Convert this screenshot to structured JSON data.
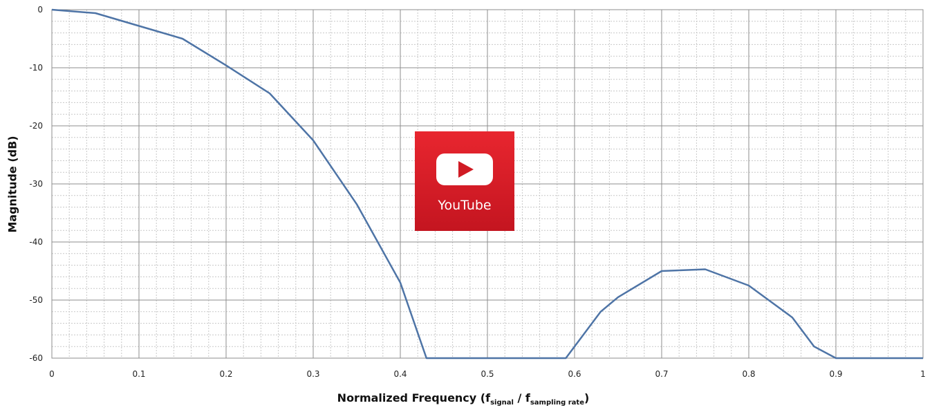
{
  "chart_data": {
    "type": "line",
    "title": "",
    "xlabel_main": "Normalized Frequency (f",
    "xlabel_sub1": "signal",
    "xlabel_mid": " / f",
    "xlabel_sub2": "sampling rate",
    "xlabel_end": ")",
    "ylabel": "Magnitude (dB)",
    "xlim": [
      0,
      1
    ],
    "ylim": [
      -60,
      0
    ],
    "x_ticks": [
      "0",
      "0.1",
      "0.2",
      "0.3",
      "0.4",
      "0.5",
      "0.6",
      "0.7",
      "0.8",
      "0.9",
      "1"
    ],
    "y_ticks": [
      "0",
      "-10",
      "-20",
      "-30",
      "-40",
      "-50",
      "-60"
    ],
    "grid": true,
    "series": [
      {
        "color": "#4e74a6",
        "x": [
          0,
          0.05,
          0.1,
          0.15,
          0.2,
          0.25,
          0.3,
          0.35,
          0.4,
          0.43,
          0.5,
          0.59,
          0.63,
          0.65,
          0.7,
          0.75,
          0.8,
          0.85,
          0.875,
          0.9,
          1
        ],
        "y": [
          0,
          -0.6,
          -2.8,
          -5,
          -9.6,
          -14.4,
          -22.5,
          -33.5,
          -47,
          -60,
          -60,
          -60,
          -52,
          -49.5,
          -45,
          -44.7,
          -47.5,
          -53,
          -58,
          -60,
          -60
        ]
      }
    ]
  },
  "overlay": {
    "label": "YouTube"
  }
}
